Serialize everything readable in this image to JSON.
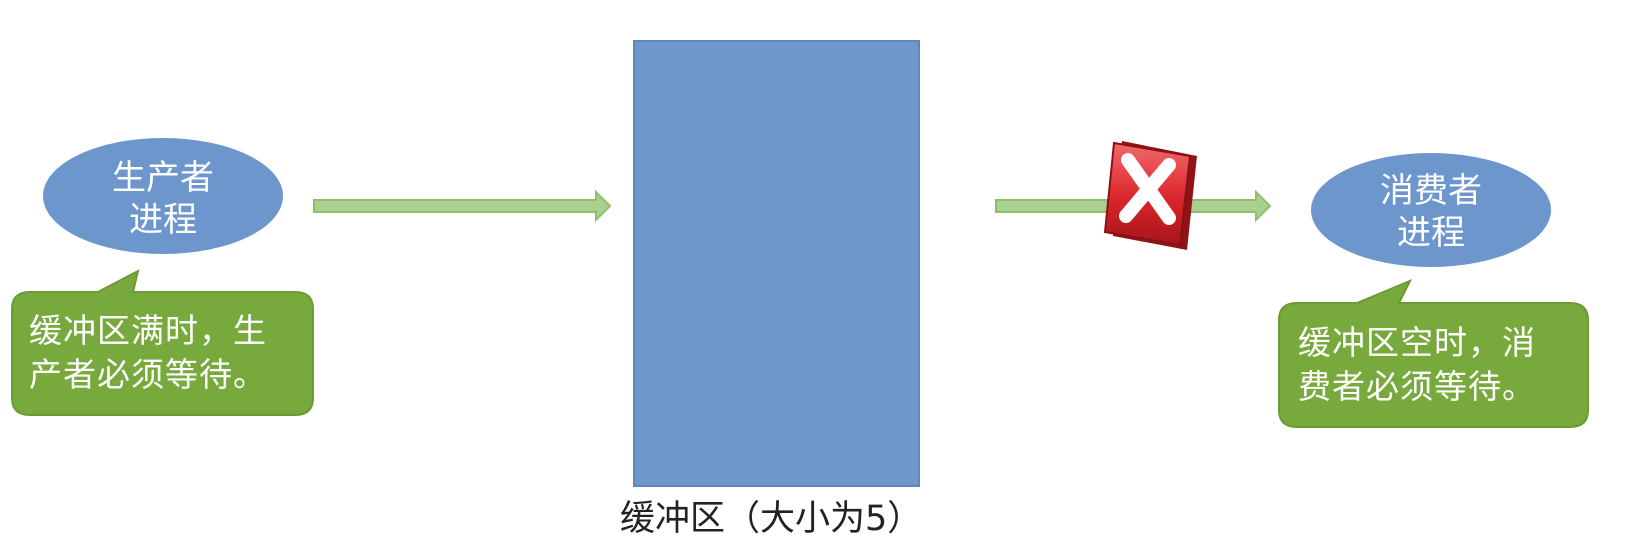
{
  "producer": {
    "label_line1": "生产者",
    "label_line2": "进程"
  },
  "consumer": {
    "label_line1": "消费者",
    "label_line2": "进程"
  },
  "producer_note": {
    "line1": "缓冲区满时，生",
    "line2": "产者必须等待。"
  },
  "consumer_note": {
    "line1": "缓冲区空时，消",
    "line2": "费者必须等待。"
  },
  "buffer": {
    "caption": "缓冲区（大小为5）"
  },
  "colors": {
    "process_fill": "#6c96cc",
    "buffer_fill": "#6f97cb",
    "note_fill": "#77a93d",
    "arrow_fill": "#a9d08e",
    "blocked_icon": "#d9252b"
  },
  "icons": {
    "blocked": "red-x-block-icon"
  }
}
